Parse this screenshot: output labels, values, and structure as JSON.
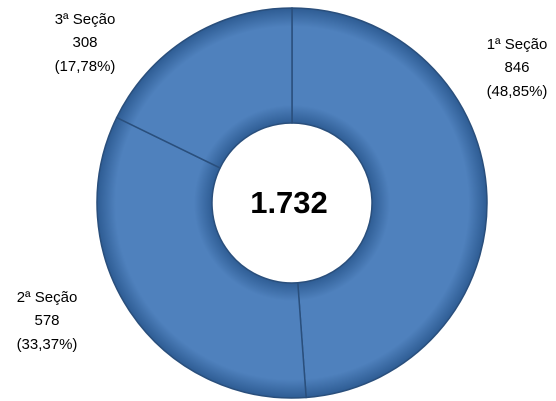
{
  "chart_data": {
    "type": "donut",
    "categories": [
      "1ª Seção",
      "2ª Seção",
      "3ª Seção"
    ],
    "values": [
      846,
      578,
      308
    ],
    "percentages": [
      48.85,
      33.37,
      17.78
    ],
    "percentage_labels": [
      "(48,85%)",
      "(33,37%)",
      "(17,78%)"
    ],
    "total": 1732,
    "total_label": "1.732",
    "color": "#4f81bd"
  }
}
